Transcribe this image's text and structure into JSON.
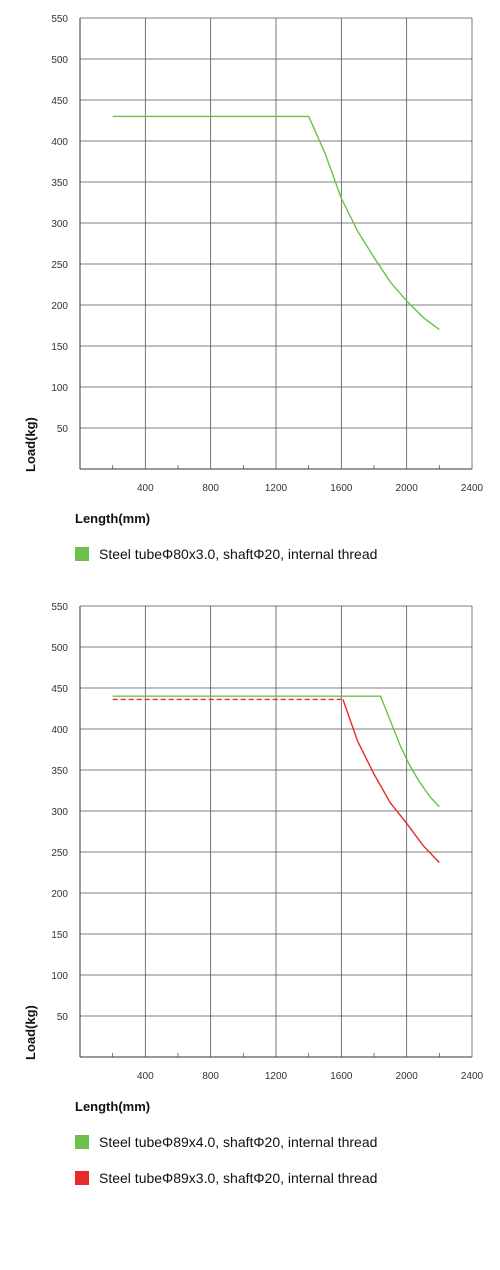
{
  "chart_data": [
    {
      "type": "line",
      "xlabel": "Length(mm)",
      "ylabel": "Load(kg)",
      "xlim": [
        0,
        2400
      ],
      "ylim": [
        0,
        550
      ],
      "x_ticks": [
        "400",
        "800",
        "1200",
        "1600",
        "2000",
        "2400"
      ],
      "y_ticks": [
        "50",
        "100",
        "150",
        "200",
        "250",
        "300",
        "350",
        "400",
        "450",
        "500",
        "550"
      ],
      "grid": true,
      "series": [
        {
          "name": "Steel tubeΦ80x3.0,  shaftΦ20,  internal thread",
          "color": "#6cc04a",
          "dashed": false,
          "x": [
            200,
            1400,
            1500,
            1600,
            1700,
            1800,
            1900,
            2000,
            2100,
            2200
          ],
          "y": [
            430,
            430,
            385,
            330,
            290,
            258,
            228,
            205,
            185,
            170
          ]
        }
      ],
      "legend": [
        {
          "label": "Steel tubeΦ80x3.0,  shaftΦ20,  internal thread",
          "color": "#6cc04a"
        }
      ]
    },
    {
      "type": "line",
      "xlabel": "Length(mm)",
      "ylabel": "Load(kg)",
      "xlim": [
        0,
        2400
      ],
      "ylim": [
        0,
        550
      ],
      "x_ticks": [
        "400",
        "800",
        "1200",
        "1600",
        "2000",
        "2400"
      ],
      "y_ticks": [
        "50",
        "100",
        "150",
        "200",
        "250",
        "300",
        "350",
        "400",
        "450",
        "500",
        "550"
      ],
      "grid": true,
      "series": [
        {
          "name": "Steel tubeΦ89x4.0,  shaftΦ20,  internal thread",
          "color": "#6cc04a",
          "dashed": false,
          "x": [
            200,
            1840,
            1900,
            1960,
            2020,
            2080,
            2140,
            2200
          ],
          "y": [
            440,
            440,
            410,
            380,
            355,
            335,
            318,
            305
          ]
        },
        {
          "name": "Steel tubeΦ89x3.0,  shaftΦ20,  internal thread",
          "color": "#e82a2a",
          "dashed": false,
          "dashed_segment_until": 1610,
          "x": [
            200,
            1610,
            1700,
            1800,
            1900,
            2000,
            2100,
            2200
          ],
          "y": [
            436,
            436,
            385,
            345,
            310,
            285,
            258,
            237
          ]
        }
      ],
      "legend": [
        {
          "label": "Steel tubeΦ89x4.0,  shaftΦ20,  internal thread",
          "color": "#6cc04a"
        },
        {
          "label": "Steel tubeΦ89x3.0,  shaftΦ20,  internal thread",
          "color": "#e82a2a"
        }
      ]
    }
  ]
}
